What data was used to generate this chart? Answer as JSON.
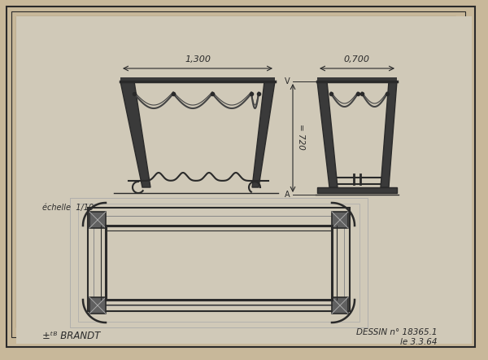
{
  "bg_outer": "#c8b89a",
  "bg_paper": "#d4ccbc",
  "bg_inner": "#d0c9b8",
  "line_color": "#2a2a2a",
  "light_line": "#888888",
  "very_light": "#aaaaaa",
  "title_text": "DESSIN n° 18365.1",
  "subtitle_text": "le 3.3.64",
  "brand_text": "±ᵗᴮ BRANDT",
  "scale_text": "échelle  1/10",
  "dim_1300": "1,300",
  "dim_700": "0,700",
  "dim_720": "= 720"
}
